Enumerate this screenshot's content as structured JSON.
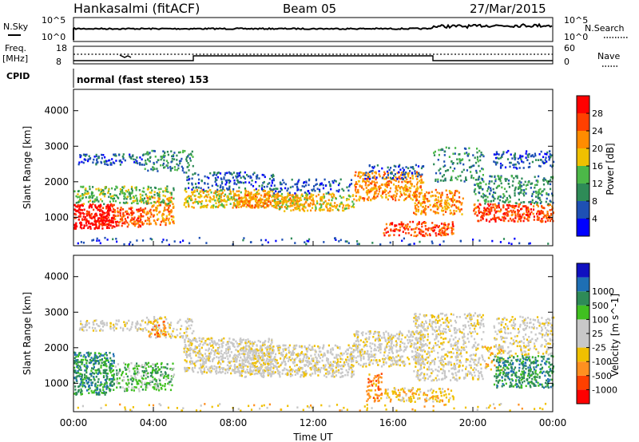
{
  "header": {
    "station": "Hankasalmi (fitACF)",
    "beam": "Beam 05",
    "date": "27/Mar/2015"
  },
  "top_panel": {
    "left_label": "N.Sky",
    "left_ticks": [
      "10^5",
      "10^0"
    ],
    "right_label": "N.Search",
    "right_ticks": [
      "10^5",
      "10^0"
    ]
  },
  "freq_panel": {
    "left_label_1": "Freq.",
    "left_label_2": "[MHz]",
    "left_ticks": [
      "18",
      "8"
    ],
    "right_label": "Nave",
    "right_ticks": [
      "60",
      "0"
    ],
    "cpid_label": "CPID",
    "mode_text": "normal (fast stereo) 153"
  },
  "colors": {
    "power": [
      "#0000ff",
      "#1e50b4",
      "#2e8b57",
      "#4cb848",
      "#f0c000",
      "#ff8c00",
      "#ff4000",
      "#ff0000"
    ],
    "velocity": [
      "#ff0000",
      "#ff4000",
      "#ff9020",
      "#f0c000",
      "#c8c8c8",
      "#c8c8c8",
      "#40c020",
      "#2e8b57",
      "#1e6fb4",
      "#1010c0"
    ]
  },
  "chart_data": [
    {
      "type": "heatmap",
      "name_id": "power",
      "ylabel": "Slant Range [km]",
      "ylim": [
        200,
        4600
      ],
      "yticks": [
        "1000",
        "2000",
        "3000",
        "4000"
      ],
      "ytick_values": [
        1000,
        2000,
        3000,
        4000
      ],
      "colorbar_label": "Power [dB]",
      "colorbar_ticks": [
        "4",
        "8",
        "12",
        "16",
        "20",
        "24",
        "28"
      ],
      "colorbar_range": [
        0,
        32
      ]
    },
    {
      "type": "heatmap",
      "name_id": "velocity",
      "ylabel": "Slant Range [km]",
      "ylim": [
        200,
        4600
      ],
      "yticks": [
        "1000",
        "2000",
        "3000",
        "4000"
      ],
      "ytick_values": [
        1000,
        2000,
        3000,
        4000
      ],
      "colorbar_label": "Velocity [m s^-1]",
      "colorbar_ticks": [
        "-1000",
        "-500",
        "-100",
        "-25",
        "25",
        "100",
        "500",
        "1000"
      ],
      "xlabel": "Time UT",
      "xticks": [
        "00:00",
        "04:00",
        "08:00",
        "12:00",
        "16:00",
        "20:00",
        "00:00"
      ],
      "xlim": [
        0,
        24
      ]
    }
  ]
}
